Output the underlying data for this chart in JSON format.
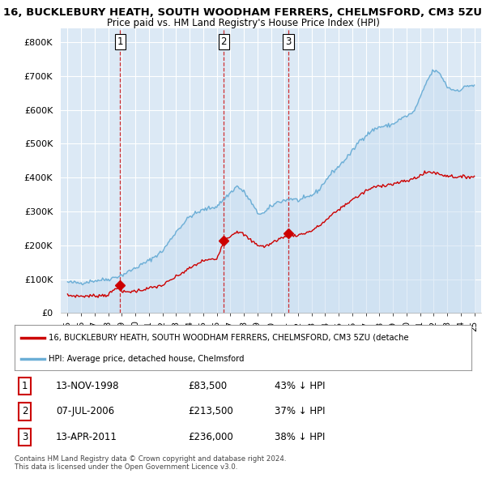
{
  "title": "16, BUCKLEBURY HEATH, SOUTH WOODHAM FERRERS, CHELMSFORD, CM3 5ZU",
  "subtitle": "Price paid vs. HM Land Registry's House Price Index (HPI)",
  "hpi_color": "#6baed6",
  "hpi_fill": "#c6dcf0",
  "price_color": "#cc0000",
  "vline_color": "#cc0000",
  "ylim": [
    0,
    840000
  ],
  "yticks": [
    0,
    100000,
    200000,
    300000,
    400000,
    500000,
    600000,
    700000,
    800000
  ],
  "ytick_labels": [
    "£0",
    "£100K",
    "£200K",
    "£300K",
    "£400K",
    "£500K",
    "£600K",
    "£700K",
    "£800K"
  ],
  "xlim_start": 1995,
  "xlim_end": 2025.5,
  "sale_points": [
    {
      "year": 1998.88,
      "price": 83500,
      "label": "1"
    },
    {
      "year": 2006.52,
      "price": 213500,
      "label": "2"
    },
    {
      "year": 2011.28,
      "price": 236000,
      "label": "3"
    }
  ],
  "vlines": [
    1998.88,
    2006.52,
    2011.28
  ],
  "legend_line1": "16, BUCKLEBURY HEATH, SOUTH WOODHAM FERRERS, CHELMSFORD, CM3 5ZU (detache",
  "legend_line2": "HPI: Average price, detached house, Chelmsford",
  "table_data": [
    {
      "num": "1",
      "date": "13-NOV-1998",
      "price": "£83,500",
      "hpi": "43% ↓ HPI"
    },
    {
      "num": "2",
      "date": "07-JUL-2006",
      "price": "£213,500",
      "hpi": "37% ↓ HPI"
    },
    {
      "num": "3",
      "date": "13-APR-2011",
      "price": "£236,000",
      "hpi": "38% ↓ HPI"
    }
  ],
  "footnote1": "Contains HM Land Registry data © Crown copyright and database right 2024.",
  "footnote2": "This data is licensed under the Open Government Licence v3.0.",
  "bg_color": "#ffffff",
  "plot_bg": "#dce9f5",
  "grid_color": "#ffffff"
}
